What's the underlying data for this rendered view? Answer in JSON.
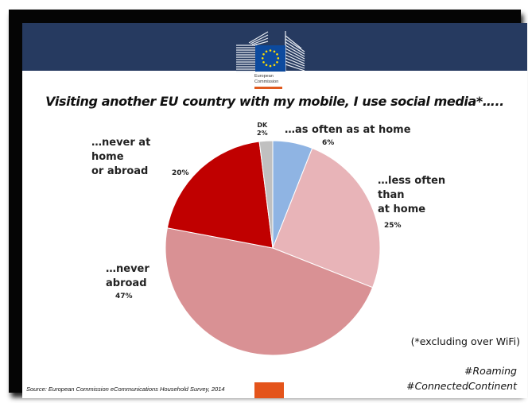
{
  "header": {
    "logo_line1": "European",
    "logo_line2": "Commission",
    "colors": {
      "banner": "#263a60",
      "eu_flag": "#0d4a9e",
      "eu_stars": "#ffdd00",
      "accent": "#e4541b"
    }
  },
  "title": "Visiting another EU country with my mobile, I use social media*…..",
  "labels": {
    "as_often": "…as often as at home",
    "as_often_pct": "6%",
    "less_often_1": "…less often",
    "less_often_2": "than",
    "less_often_3": "at home",
    "less_often_pct": "25%",
    "never_abroad_1": "…never",
    "never_abroad_2": "abroad",
    "never_abroad_pct": "47%",
    "never_both_1": "…never at",
    "never_both_2": "home",
    "never_both_3": "or abroad",
    "never_both_pct": "20%",
    "dk": "DK",
    "dk_pct": "2%"
  },
  "note": "(*excluding over WiFi)",
  "tags": [
    "#Roaming",
    "#ConnectedContinent"
  ],
  "source": "Source: European Commission eCommunications Household Survey, 2014",
  "chart_data": {
    "type": "pie",
    "title": "Visiting another EU country with my mobile, I use social media*…..",
    "categories": [
      "…as often as at home",
      "…less often than at home",
      "…never abroad",
      "…never at home or abroad",
      "DK"
    ],
    "values": [
      6,
      25,
      47,
      20,
      2
    ],
    "colors": [
      "#8fb4e3",
      "#e8b4b8",
      "#d99194",
      "#c00000",
      "#c0c0c0"
    ],
    "start_angle": "12 o'clock, clockwise",
    "unit": "%",
    "footnote": "(*excluding over WiFi)",
    "source": "European Commission eCommunications Household Survey, 2014"
  }
}
